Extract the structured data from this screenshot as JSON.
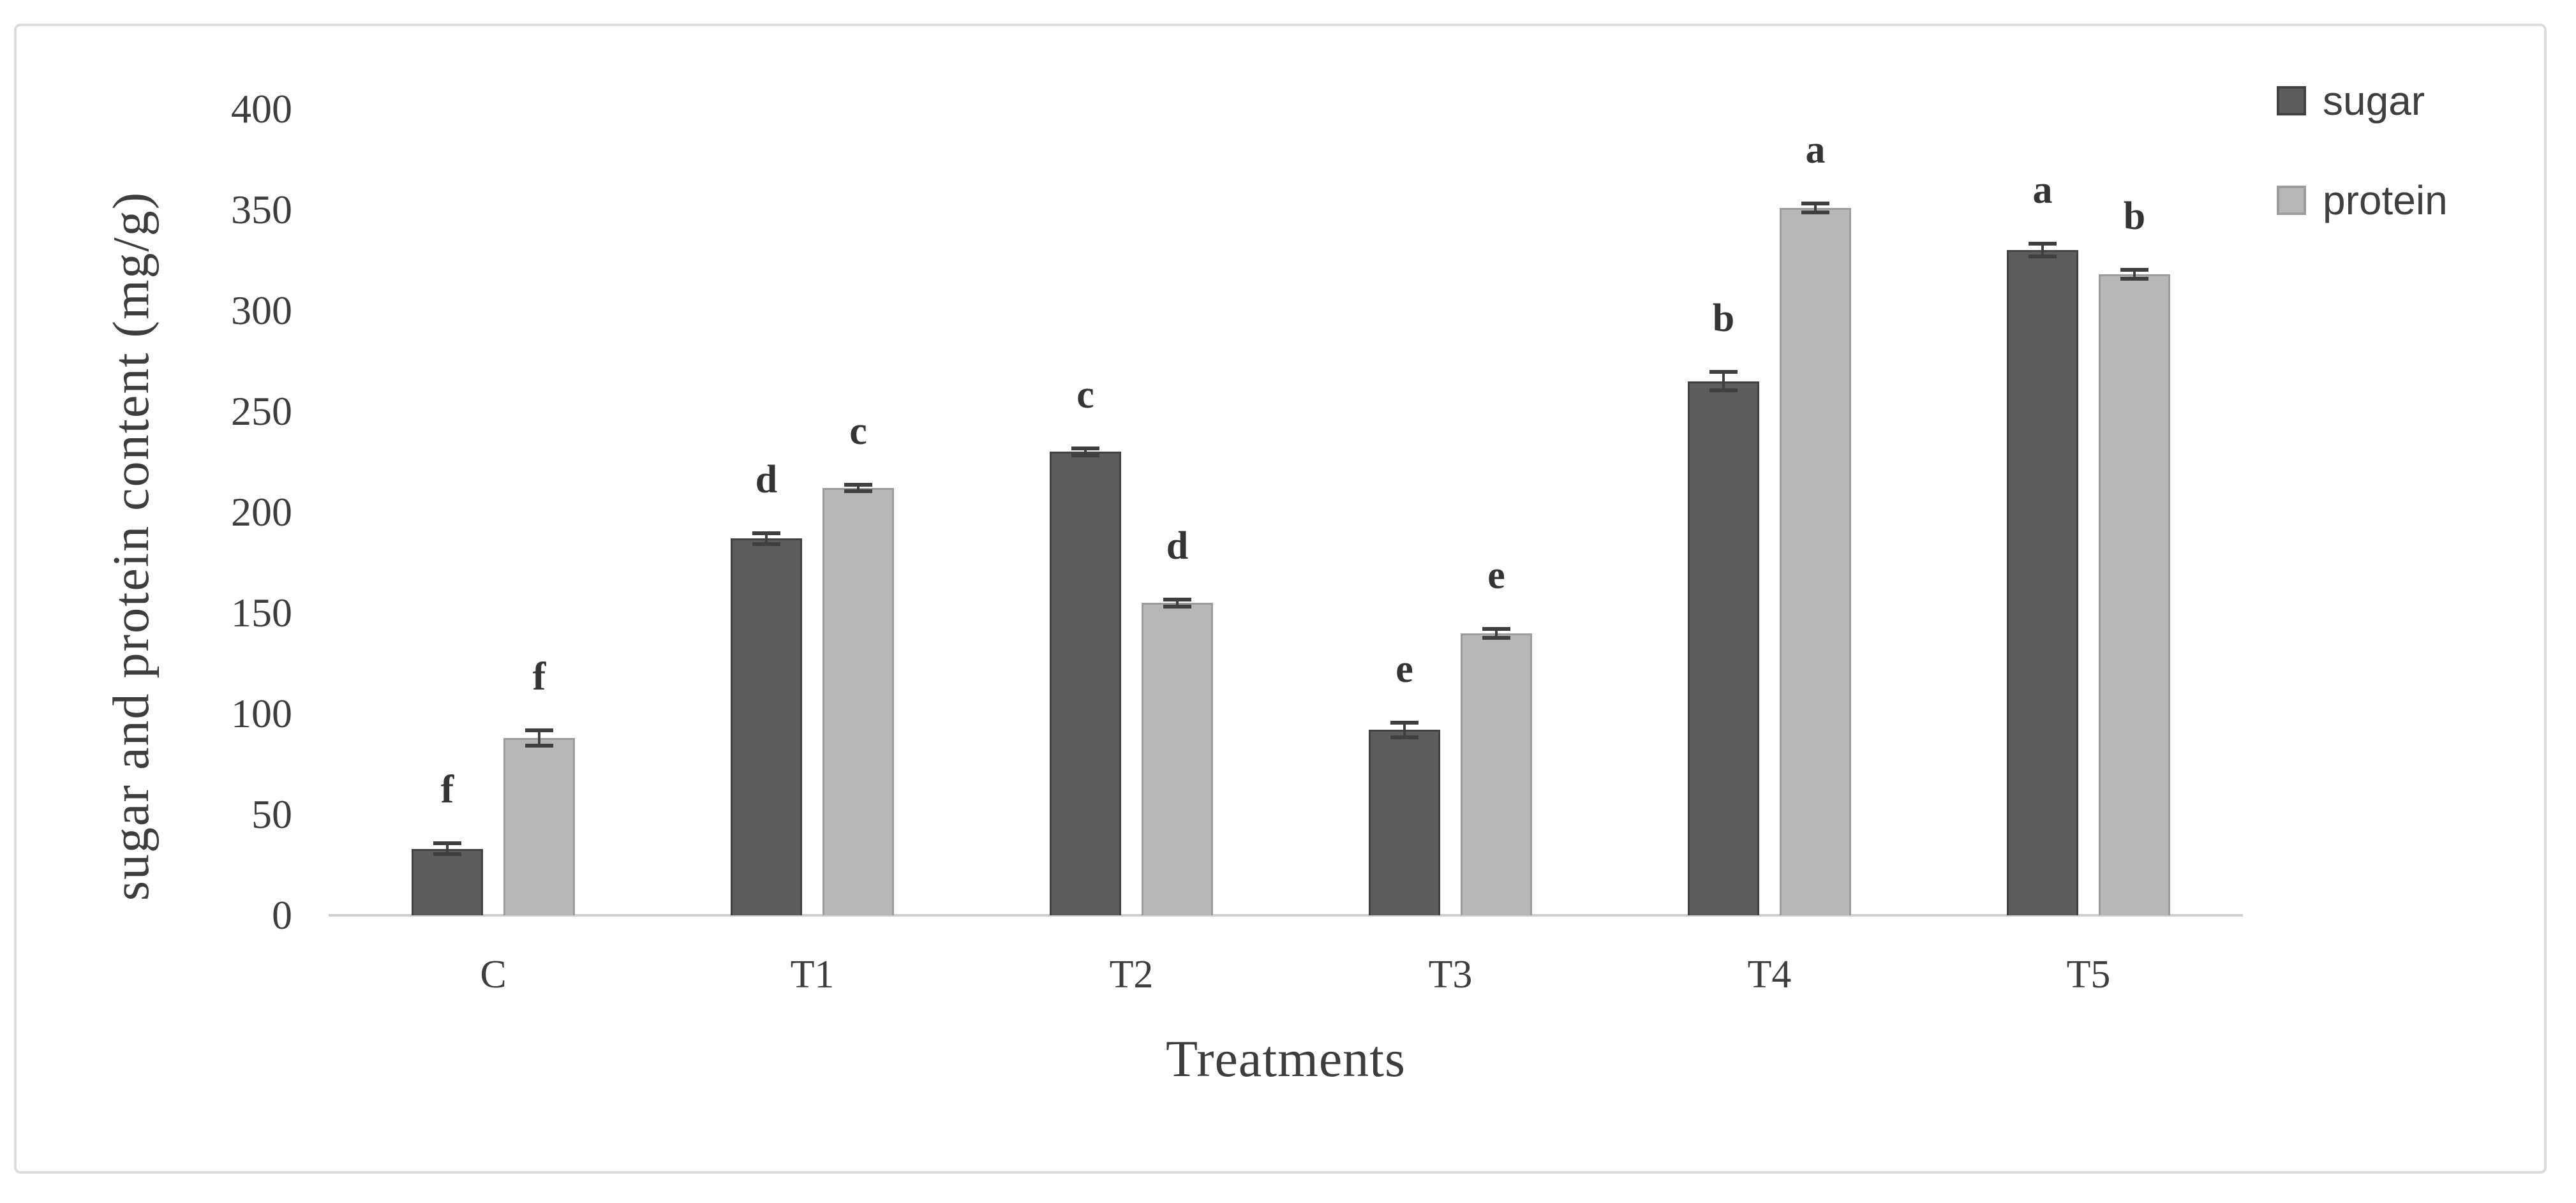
{
  "chart_data": {
    "type": "bar",
    "title": "",
    "xlabel": "Treatments",
    "ylabel": "sugar and protein content (mg/g)",
    "categories": [
      "C",
      "T1",
      "T2",
      "T3",
      "T4",
      "T5"
    ],
    "series": [
      {
        "name": "sugar",
        "color": "#5c5c5c",
        "border_color": "#424242",
        "values": [
          33,
          187,
          230,
          92,
          265,
          330
        ],
        "errors": [
          3,
          3,
          2,
          4,
          5,
          3.5
        ],
        "letters": [
          "f",
          "d",
          "c",
          "e",
          "b",
          "a"
        ]
      },
      {
        "name": "protein",
        "color": "#b7b7b7",
        "border_color": "#9c9c9c",
        "values": [
          88,
          212,
          155,
          140,
          351,
          318
        ],
        "errors": [
          4,
          2,
          2,
          2.5,
          2.5,
          2.5
        ],
        "letters": [
          "f",
          "c",
          "d",
          "e",
          "a",
          "b"
        ]
      }
    ],
    "ylim": [
      0,
      400
    ],
    "yticks": [
      0,
      50,
      100,
      150,
      200,
      250,
      300,
      350,
      400
    ],
    "grid": false,
    "legend_position": "top-right",
    "error_bar_color": "#3f3f3f",
    "axis_line_color": "#cfcfcf"
  }
}
